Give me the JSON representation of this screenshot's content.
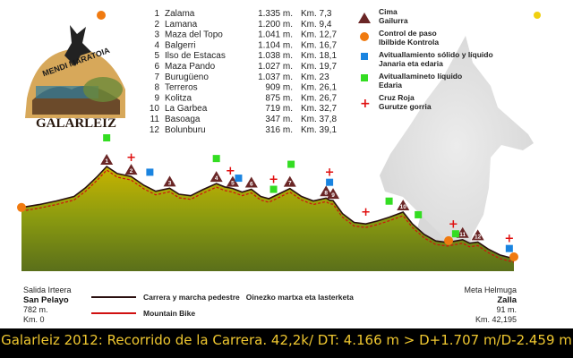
{
  "logo": {
    "text_top": "MENDI MARATOIA",
    "text_bottom": "GALARLEIZ"
  },
  "peaks": [
    {
      "n": "1",
      "name": "Zalama",
      "alt": "1.335 m.",
      "km": "Km. 7,3"
    },
    {
      "n": "2",
      "name": "Lamana",
      "alt": "1.200 m.",
      "km": "Km. 9,4"
    },
    {
      "n": "3",
      "name": "Maza del Topo",
      "alt": "1.041 m.",
      "km": "Km. 12,7"
    },
    {
      "n": "4",
      "name": "Balgerri",
      "alt": "1.104 m.",
      "km": "Km. 16,7"
    },
    {
      "n": "5",
      "name": "Ilso de Estacas",
      "alt": "1.038 m.",
      "km": "Km. 18,1"
    },
    {
      "n": "6",
      "name": "Maza Pando",
      "alt": "1.027 m.",
      "km": "Km. 19,7"
    },
    {
      "n": "7",
      "name": "Burugüeno",
      "alt": "1.037 m.",
      "km": "Km. 23"
    },
    {
      "n": "8",
      "name": "Terreros",
      "alt": "909 m.",
      "km": "Km. 26,1"
    },
    {
      "n": "9",
      "name": "Kolitza",
      "alt": "875 m.",
      "km": "Km. 26,7"
    },
    {
      "n": "10",
      "name": "La Garbea",
      "alt": "719 m.",
      "km": "Km. 32,7"
    },
    {
      "n": "11",
      "name": "Basoaga",
      "alt": "347 m.",
      "km": "Km. 37,8"
    },
    {
      "n": "12",
      "name": "Bolunburu",
      "alt": "316 m.",
      "km": "Km. 39,1"
    }
  ],
  "legend": {
    "cima": [
      "Cima",
      "Gailurra"
    ],
    "control": [
      "Control de paso",
      "Ibilbide Kontrola"
    ],
    "solido": [
      "Avituallamiento sólido y líquido",
      "Janaria eta edaria"
    ],
    "liquido": [
      "Avituallamineto líquido",
      "Edaria"
    ],
    "cruz": [
      "Cruz Roja",
      "Gurutze gorria"
    ]
  },
  "start": {
    "line1": "Salida Irteera",
    "place": "San Pelayo",
    "alt": "782 m.",
    "km": "Km. 0"
  },
  "finish": {
    "line1": "Meta Helmuga",
    "place": "Zalla",
    "alt": "91 m.",
    "km": "Km. 42,195"
  },
  "route_legend": {
    "foot": "Carrera y marcha pedestre   Oinezko martxa eta lasterketa",
    "bike": "Mountain Bike"
  },
  "caption": "Galarleiz 2012: Recorrido de la Carrera. 42,2k/ DT: 4.166 m > D+1.707 m/D-2.459 m",
  "colors": {
    "fill_top": "#b6a800",
    "fill_bottom": "#6b7f1e",
    "line": "#2a1010",
    "bike": "#d01010",
    "orange": "#f07a10",
    "blue": "#1a84e0",
    "green": "#33dd22",
    "peak": "#6a2626"
  },
  "chart_data": {
    "type": "area",
    "title": "Galarleiz 2012",
    "x_unit": "km",
    "y_unit": "m",
    "xlim": [
      0,
      42.195
    ],
    "profile": [
      [
        0,
        782
      ],
      [
        1.5,
        820
      ],
      [
        3,
        870
      ],
      [
        4.5,
        930
      ],
      [
        5.5,
        1050
      ],
      [
        6.5,
        1200
      ],
      [
        7.3,
        1335
      ],
      [
        8.2,
        1240
      ],
      [
        9.4,
        1200
      ],
      [
        10.5,
        1080
      ],
      [
        11.5,
        1000
      ],
      [
        12.7,
        1041
      ],
      [
        13.5,
        960
      ],
      [
        14.5,
        940
      ],
      [
        15.5,
        1020
      ],
      [
        16.7,
        1104
      ],
      [
        17.4,
        1060
      ],
      [
        18.1,
        1038
      ],
      [
        18.9,
        990
      ],
      [
        19.7,
        1027
      ],
      [
        20.5,
        930
      ],
      [
        21.2,
        900
      ],
      [
        22.0,
        960
      ],
      [
        23,
        1037
      ],
      [
        24.0,
        930
      ],
      [
        25.0,
        870
      ],
      [
        26.1,
        909
      ],
      [
        26.4,
        880
      ],
      [
        26.7,
        875
      ],
      [
        27.5,
        700
      ],
      [
        28.5,
        580
      ],
      [
        29.5,
        560
      ],
      [
        30.5,
        600
      ],
      [
        31.5,
        650
      ],
      [
        32.7,
        719
      ],
      [
        33.5,
        560
      ],
      [
        34.5,
        420
      ],
      [
        35.5,
        330
      ],
      [
        36.5,
        310
      ],
      [
        37.8,
        347
      ],
      [
        38.4,
        300
      ],
      [
        39.1,
        316
      ],
      [
        40.0,
        220
      ],
      [
        41.0,
        140
      ],
      [
        42.195,
        91
      ]
    ],
    "peaks_km": [
      7.3,
      9.4,
      12.7,
      16.7,
      18.1,
      19.7,
      23,
      26.1,
      26.7,
      32.7,
      37.8,
      39.1
    ]
  }
}
